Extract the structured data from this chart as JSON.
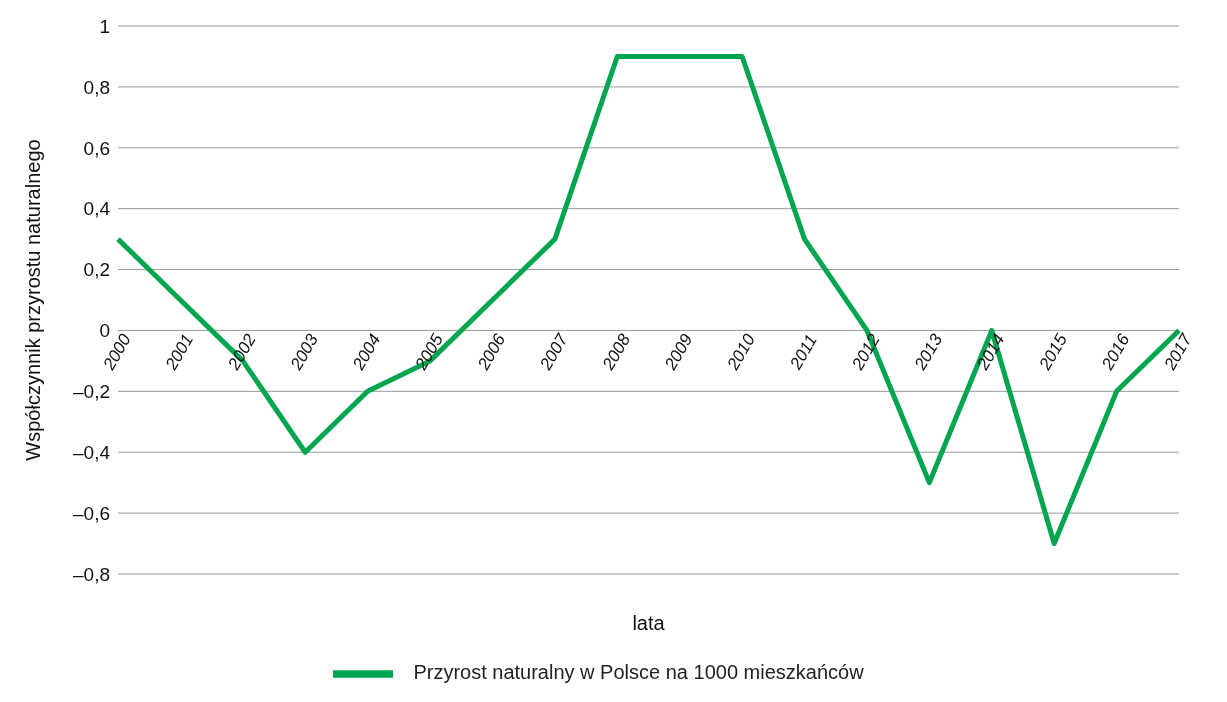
{
  "chart_data": {
    "type": "line",
    "xlabel": "lata",
    "ylabel": "Współczynnik przyrostu naturalnego",
    "categories": [
      "2000",
      "2001",
      "2002",
      "2003",
      "2004",
      "2005",
      "2006",
      "2007",
      "2008",
      "2009",
      "2010",
      "2011",
      "2012",
      "2013",
      "2014",
      "2015",
      "2016",
      "2017"
    ],
    "series": [
      {
        "name": "Przyrost naturalny w Polsce na 1000 mieszkańców",
        "color": "#00a550",
        "values": [
          0.3,
          0.1,
          -0.1,
          -0.4,
          -0.2,
          -0.1,
          0.1,
          0.3,
          0.9,
          0.9,
          0.9,
          0.3,
          0,
          -0.5,
          0,
          -0.7,
          -0.2,
          0
        ]
      }
    ],
    "ylim": [
      -0.8,
      1
    ],
    "yticks": [
      1,
      {
        "value": 0.8,
        "label": "0,8"
      },
      {
        "value": 0.6,
        "label": "0,6"
      },
      {
        "value": 0.4,
        "label": "0,4"
      },
      {
        "value": 0.2,
        "label": "0,2"
      },
      0,
      {
        "value": -0.2,
        "label": "–0,2"
      },
      {
        "value": -0.4,
        "label": "–0,4"
      },
      {
        "value": -0.6,
        "label": "–0,6"
      },
      {
        "value": -0.8,
        "label": "–0,8"
      }
    ],
    "grid": "y",
    "legend": "bottom",
    "marker": "none",
    "line_style": "solid"
  }
}
